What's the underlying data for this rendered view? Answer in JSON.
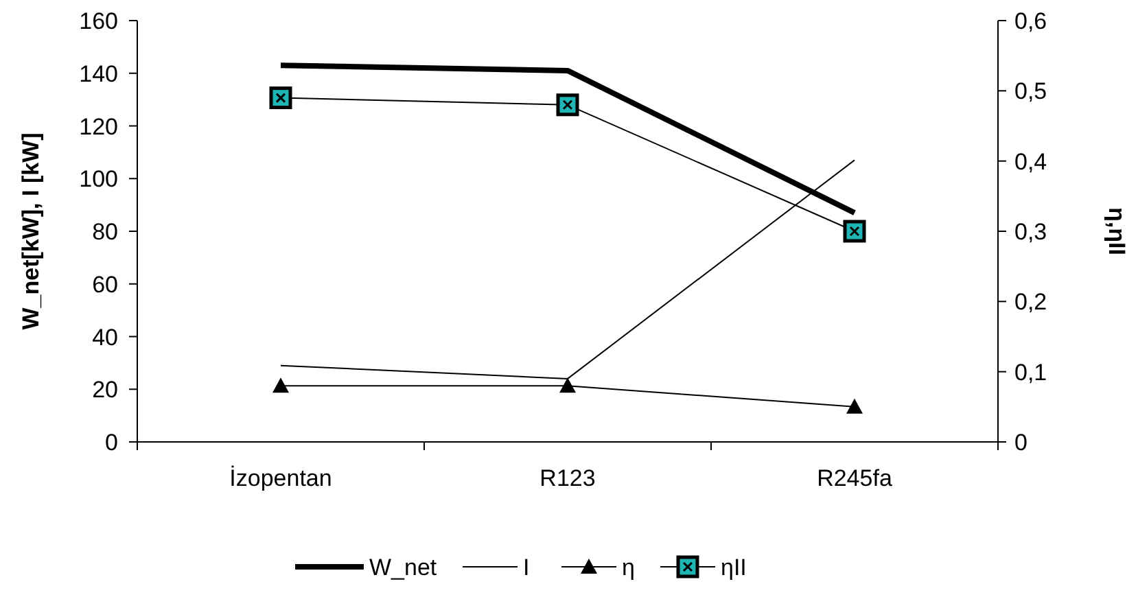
{
  "chart_data": {
    "type": "line",
    "categories": [
      "İzopentan",
      "R123",
      "R245fa"
    ],
    "ylabel": "W_net[kW], I [kW]",
    "y2label": "η,ηII",
    "ylim": [
      0,
      160
    ],
    "yticks": [
      0,
      20,
      40,
      60,
      80,
      100,
      120,
      140,
      160
    ],
    "y2lim": [
      0,
      0.6
    ],
    "y2ticks": [
      {
        "value": 0,
        "label": "0"
      },
      {
        "value": 0.1,
        "label": "0,1"
      },
      {
        "value": 0.2,
        "label": "0,2"
      },
      {
        "value": 0.3,
        "label": "0,3"
      },
      {
        "value": 0.4,
        "label": "0,4"
      },
      {
        "value": 0.5,
        "label": "0,5"
      },
      {
        "value": 0.6,
        "label": "0,6"
      }
    ],
    "grid": false,
    "legend": "bottom",
    "line_style": "solid",
    "series": [
      {
        "name": "W_net",
        "color": "#000000",
        "marker": "none",
        "values": [
          143,
          141,
          87
        ]
      },
      {
        "name": "I",
        "color": "#000000",
        "marker": "none",
        "values": [
          29,
          24,
          107
        ]
      },
      {
        "name": "η",
        "color": "#000000",
        "marker": "triangle",
        "axis": "y2",
        "values": [
          0.08,
          0.08,
          0.05
        ]
      },
      {
        "name": "ηII",
        "color": "#000000",
        "marker": "square",
        "axis": "y2",
        "values": [
          0.49,
          0.48,
          0.3
        ]
      }
    ]
  }
}
